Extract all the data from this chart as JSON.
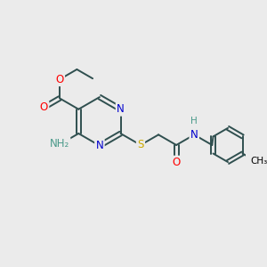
{
  "bg_color": "#ebebeb",
  "atom_colors": {
    "C": "#000000",
    "N": "#0000cd",
    "O": "#ff0000",
    "S": "#ccaa00",
    "H": "#000000",
    "NH2": "#4a9a8a"
  },
  "bond_color": "#2f4f4f",
  "bond_width": 1.4,
  "figsize": [
    3.0,
    3.0
  ],
  "dpi": 100
}
